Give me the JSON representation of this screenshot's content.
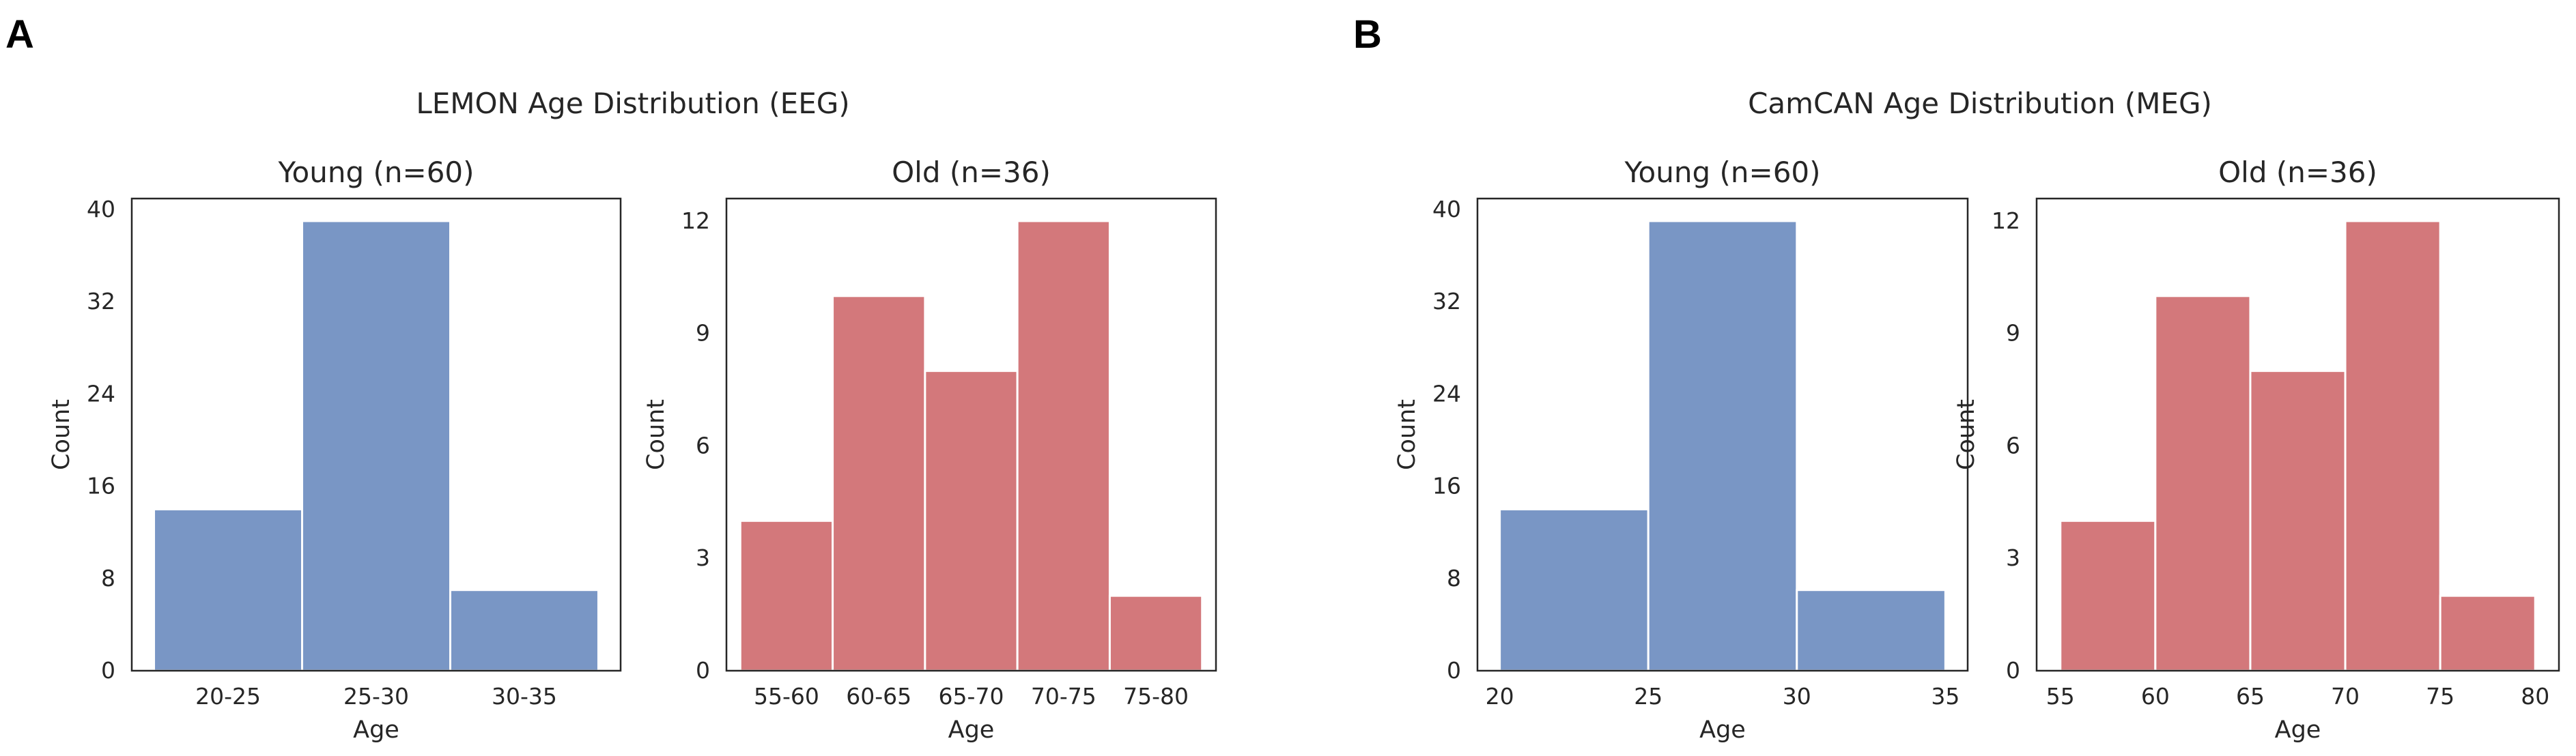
{
  "colors": {
    "young": "#7996c5",
    "old": "#d3787b"
  },
  "panels": [
    {
      "letter": "A",
      "suptitle": "LEMON Age Distribution (EEG)",
      "subplots": [
        {
          "title": "Young (n=60)",
          "xlabel": "Age",
          "ylabel": "Count",
          "color_key": "young"
        },
        {
          "title": "Old (n=36)",
          "xlabel": "Age",
          "ylabel": "Count",
          "color_key": "old"
        }
      ]
    },
    {
      "letter": "B",
      "suptitle": "CamCAN Age Distribution (MEG)",
      "subplots": [
        {
          "title": "Young (n=60)",
          "xlabel": "Age",
          "ylabel": "Count",
          "color_key": "young"
        },
        {
          "title": "Old (n=36)",
          "xlabel": "Age",
          "ylabel": "Count",
          "color_key": "old"
        }
      ]
    }
  ],
  "chart_data": [
    {
      "type": "bar",
      "title": "Young (n=60)",
      "xlabel": "Age",
      "ylabel": "Count",
      "categories": [
        "20-25",
        "25-30",
        "30-35"
      ],
      "values": [
        14,
        39,
        7
      ],
      "ylim": [
        0,
        40.95
      ],
      "yticks": [
        0,
        8,
        16,
        24,
        32,
        40
      ]
    },
    {
      "type": "bar",
      "title": "Old (n=36)",
      "xlabel": "Age",
      "ylabel": "Count",
      "categories": [
        "55-60",
        "60-65",
        "65-70",
        "70-75",
        "75-80"
      ],
      "values": [
        4,
        10,
        8,
        12,
        2
      ],
      "ylim": [
        0,
        12.6
      ],
      "yticks": [
        0,
        3,
        6,
        9,
        12
      ]
    },
    {
      "type": "bar",
      "title": "Young (n=60)",
      "xlabel": "Age",
      "ylabel": "Count",
      "bin_edges": [
        20,
        25,
        30,
        35
      ],
      "xticks": [
        20,
        25,
        30,
        35
      ],
      "xlim": [
        19.25,
        35.75
      ],
      "values": [
        14,
        39,
        7
      ],
      "ylim": [
        0,
        40.95
      ],
      "yticks": [
        0,
        8,
        16,
        24,
        32,
        40
      ]
    },
    {
      "type": "bar",
      "title": "Old (n=36)",
      "xlabel": "Age",
      "ylabel": "Count",
      "bin_edges": [
        55,
        60,
        65,
        70,
        75,
        80
      ],
      "xticks": [
        55,
        60,
        65,
        70,
        75,
        80
      ],
      "xlim": [
        53.75,
        81.25
      ],
      "values": [
        4,
        10,
        8,
        12,
        2
      ],
      "ylim": [
        0,
        12.6
      ],
      "yticks": [
        0,
        3,
        6,
        9,
        12
      ]
    }
  ]
}
